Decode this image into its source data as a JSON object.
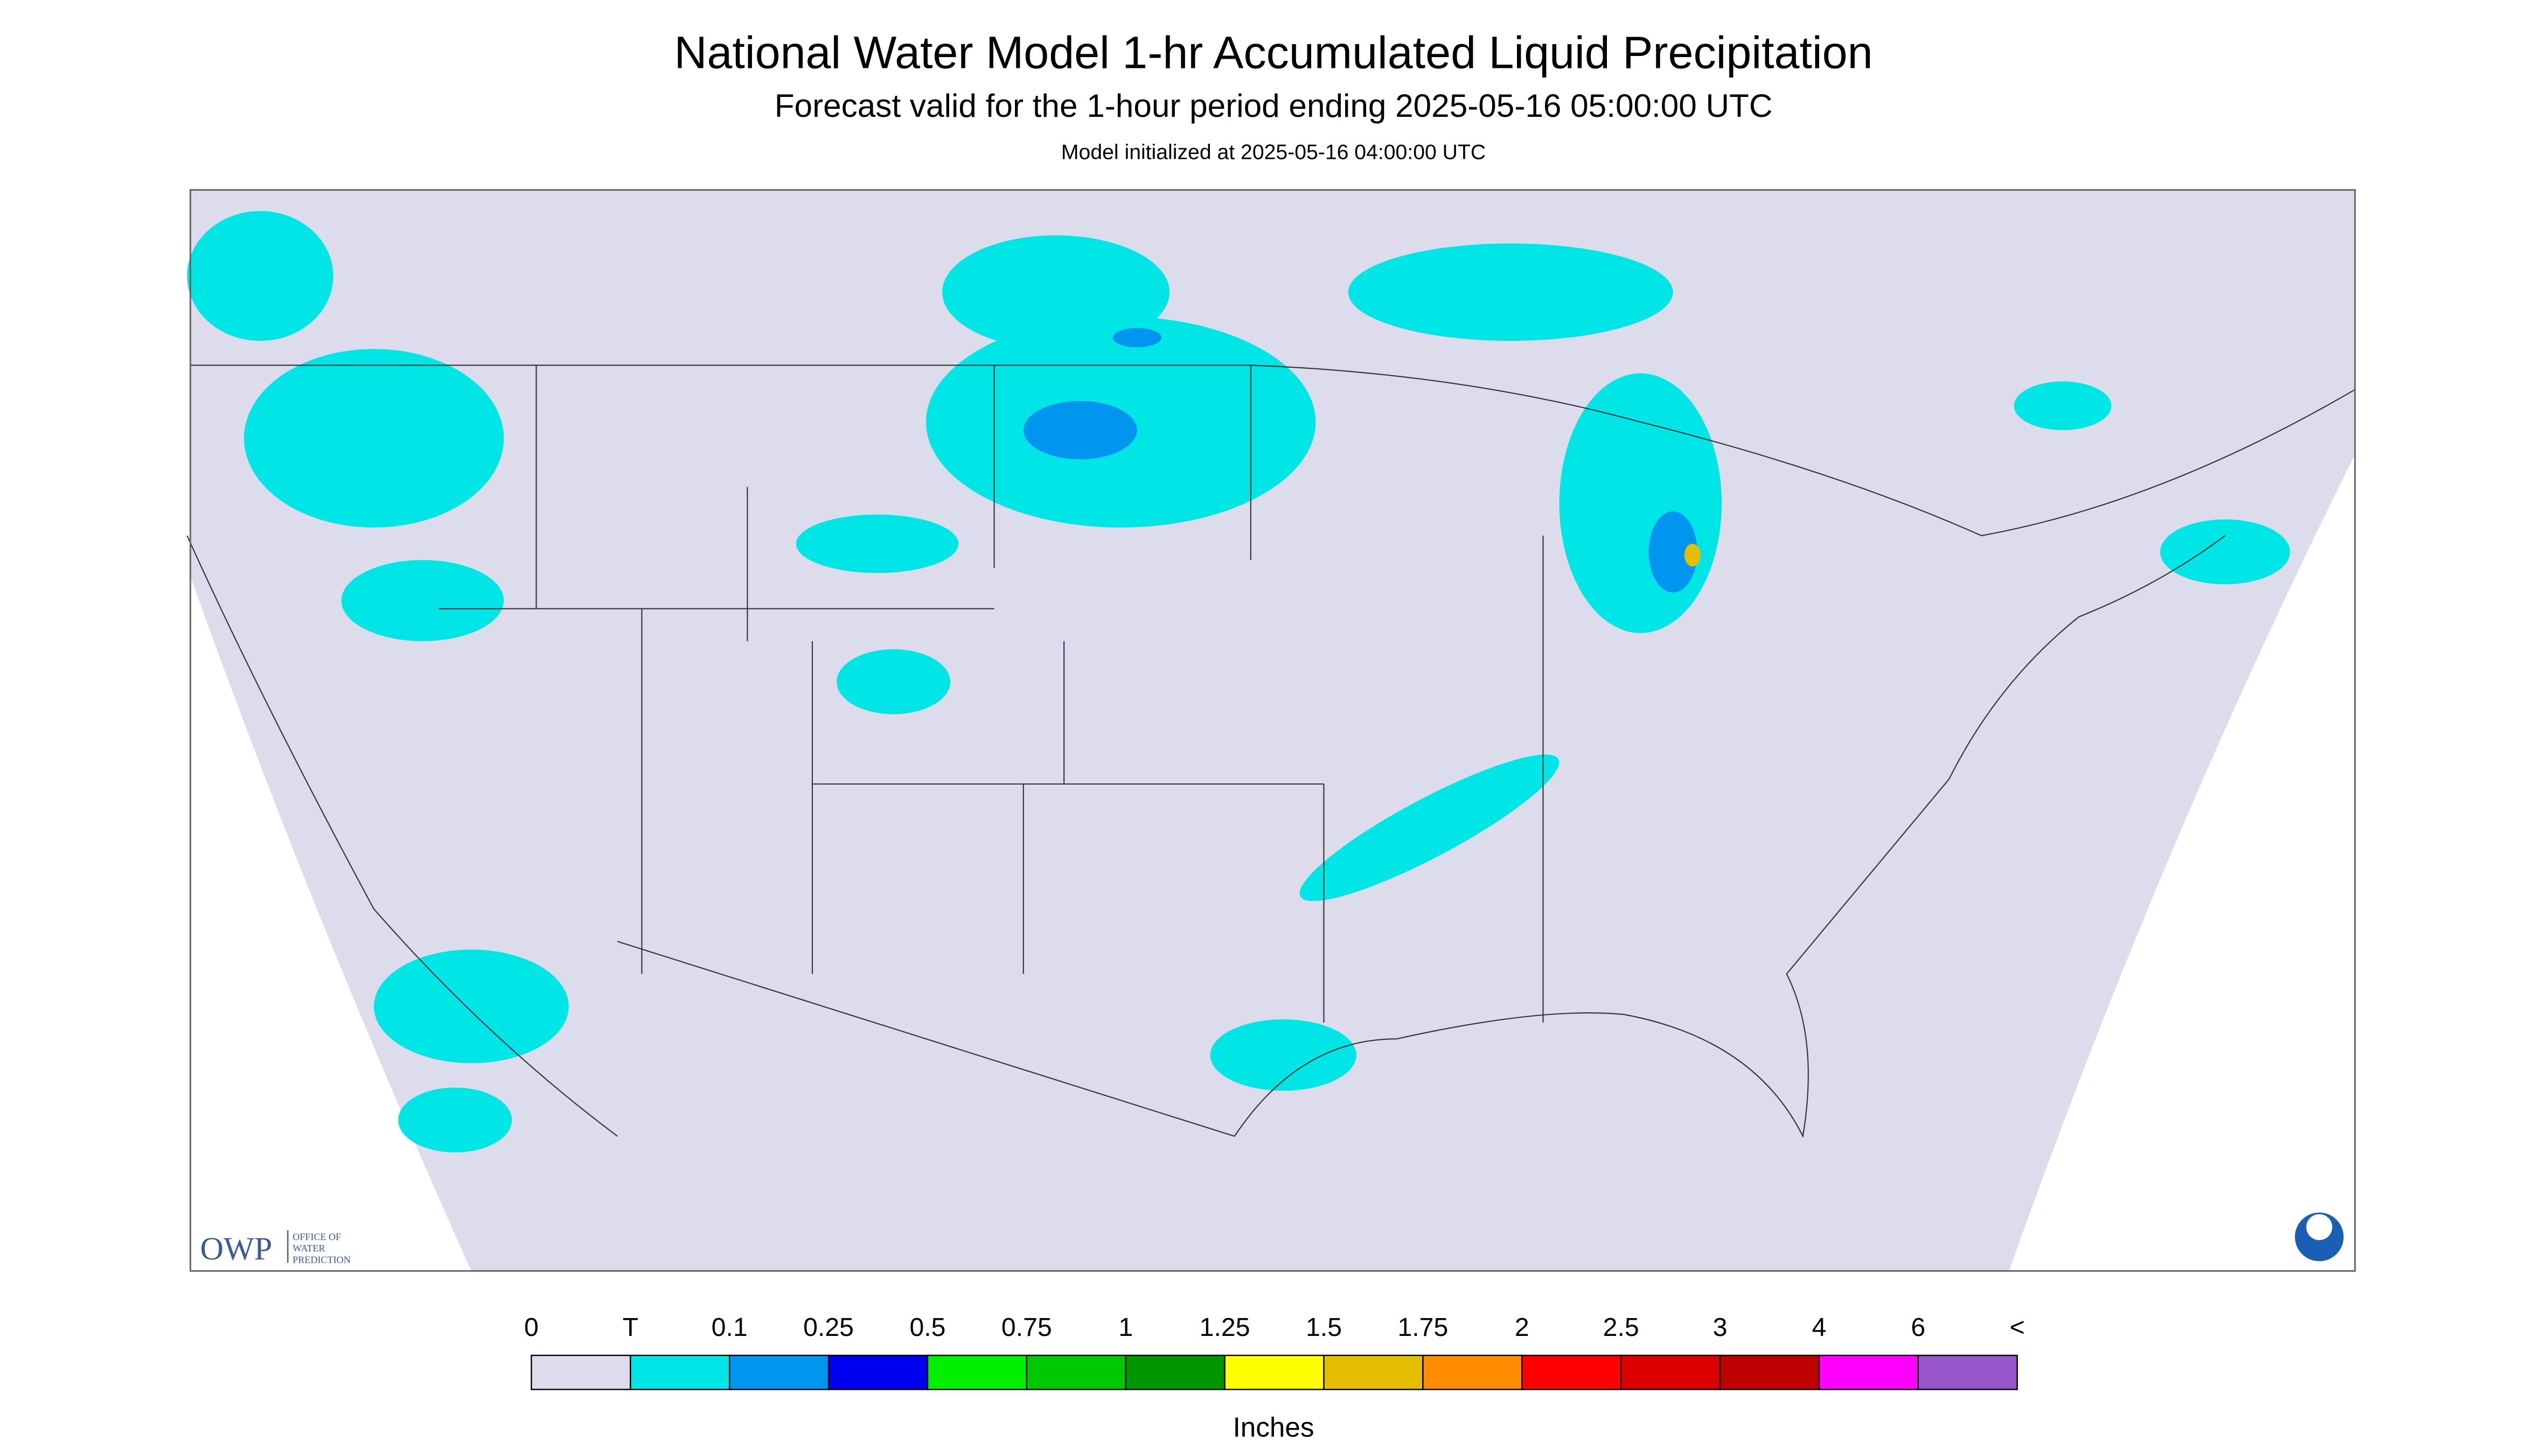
{
  "header": {
    "title": "National Water Model 1-hr Accumulated Liquid Precipitation",
    "subtitle": "Forecast valid for the 1-hour period ending 2025-05-16 05:00:00 UTC",
    "note": "Model initialized at 2025-05-16 04:00:00 UTC"
  },
  "legend": {
    "labels": [
      "0",
      "T",
      "0.1",
      "0.25",
      "0.5",
      "0.75",
      "1",
      "1.25",
      "1.5",
      "1.75",
      "2",
      "2.5",
      "3",
      "4",
      "6",
      "<"
    ],
    "colors": [
      "#dcdcec",
      "#00e6e6",
      "#0096f0",
      "#0000f0",
      "#00f000",
      "#00c800",
      "#009600",
      "#ffff00",
      "#e6be00",
      "#ff8c00",
      "#ff0000",
      "#dc0000",
      "#be0000",
      "#ff00ff",
      "#9655c8"
    ],
    "unit": "Inches"
  },
  "logo": {
    "name": "OWP",
    "line1": "OFFICE OF",
    "line2": "WATER",
    "line3": "PREDICTION"
  }
}
